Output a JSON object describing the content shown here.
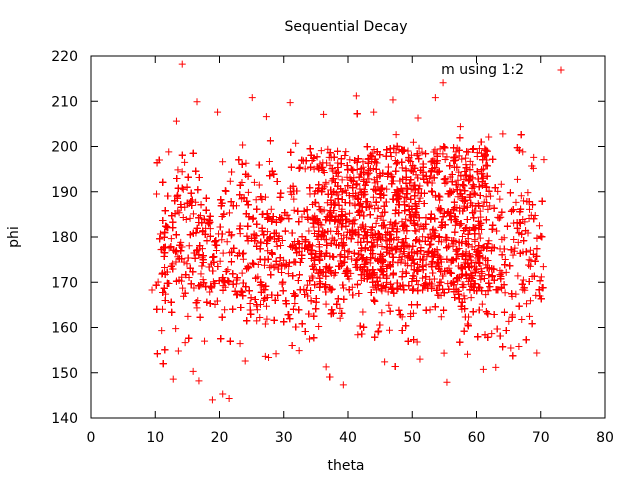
{
  "chart_data": {
    "type": "scatter",
    "title": "Sequential Decay",
    "xlabel": "theta",
    "ylabel": "phi",
    "xlim": [
      0,
      80
    ],
    "ylim": [
      140,
      220
    ],
    "xticks": [
      "0",
      "10",
      "20",
      "30",
      "40",
      "50",
      "60",
      "70",
      "80"
    ],
    "yticks": [
      "140",
      "150",
      "160",
      "170",
      "180",
      "190",
      "200",
      "210",
      "220"
    ],
    "grid": false,
    "legend_position": "top-right",
    "marker": "plus",
    "series": [
      {
        "name": "m using 1:2",
        "color": "#ff0000",
        "points": [
          [
            14.2,
            218.2
          ],
          [
            54.8,
            214.1
          ],
          [
            21.5,
            144.3
          ],
          [
            18.9,
            144.0
          ],
          [
            9.5,
            168.3
          ],
          [
            10.2,
            189.5
          ],
          [
            11.0,
            159.3
          ],
          [
            12.8,
            148.6
          ],
          [
            16.8,
            148.2
          ],
          [
            20.5,
            145.3
          ],
          [
            25.1,
            210.8
          ],
          [
            31.0,
            209.7
          ],
          [
            36.6,
            151.3
          ],
          [
            41.3,
            211.2
          ],
          [
            47.0,
            210.3
          ],
          [
            53.6,
            210.8
          ],
          [
            55.4,
            147.9
          ],
          [
            61.9,
            202.1
          ],
          [
            67.2,
            198.8
          ],
          [
            68.9,
            197.6
          ],
          [
            70.5,
            197.1
          ],
          [
            70.1,
            171.2
          ],
          [
            69.8,
            182.5
          ],
          [
            68.4,
            165.9
          ],
          [
            66.6,
            155.8
          ],
          [
            63.0,
            151.2
          ],
          [
            13.3,
            205.6
          ],
          [
            12.1,
            198.8
          ],
          [
            11.5,
            180.9
          ],
          [
            10.9,
            177.2
          ],
          [
            13.6,
            154.8
          ],
          [
            15.9,
            150.3
          ],
          [
            24.0,
            152.6
          ],
          [
            28.8,
            154.2
          ],
          [
            32.4,
            154.9
          ],
          [
            45.7,
            152.4
          ],
          [
            51.2,
            153.0
          ],
          [
            58.6,
            154.1
          ],
          [
            16.5,
            209.9
          ],
          [
            19.7,
            207.6
          ],
          [
            27.3,
            206.6
          ],
          [
            36.2,
            207.1
          ],
          [
            44.0,
            207.6
          ],
          [
            50.9,
            206.3
          ],
          [
            57.5,
            204.4
          ],
          [
            64.1,
            202.8
          ],
          [
            68.0,
            189.8
          ],
          [
            66.5,
            178.8
          ],
          [
            67.3,
            170.5
          ],
          [
            65.6,
            162.8
          ]
        ]
      }
    ]
  }
}
